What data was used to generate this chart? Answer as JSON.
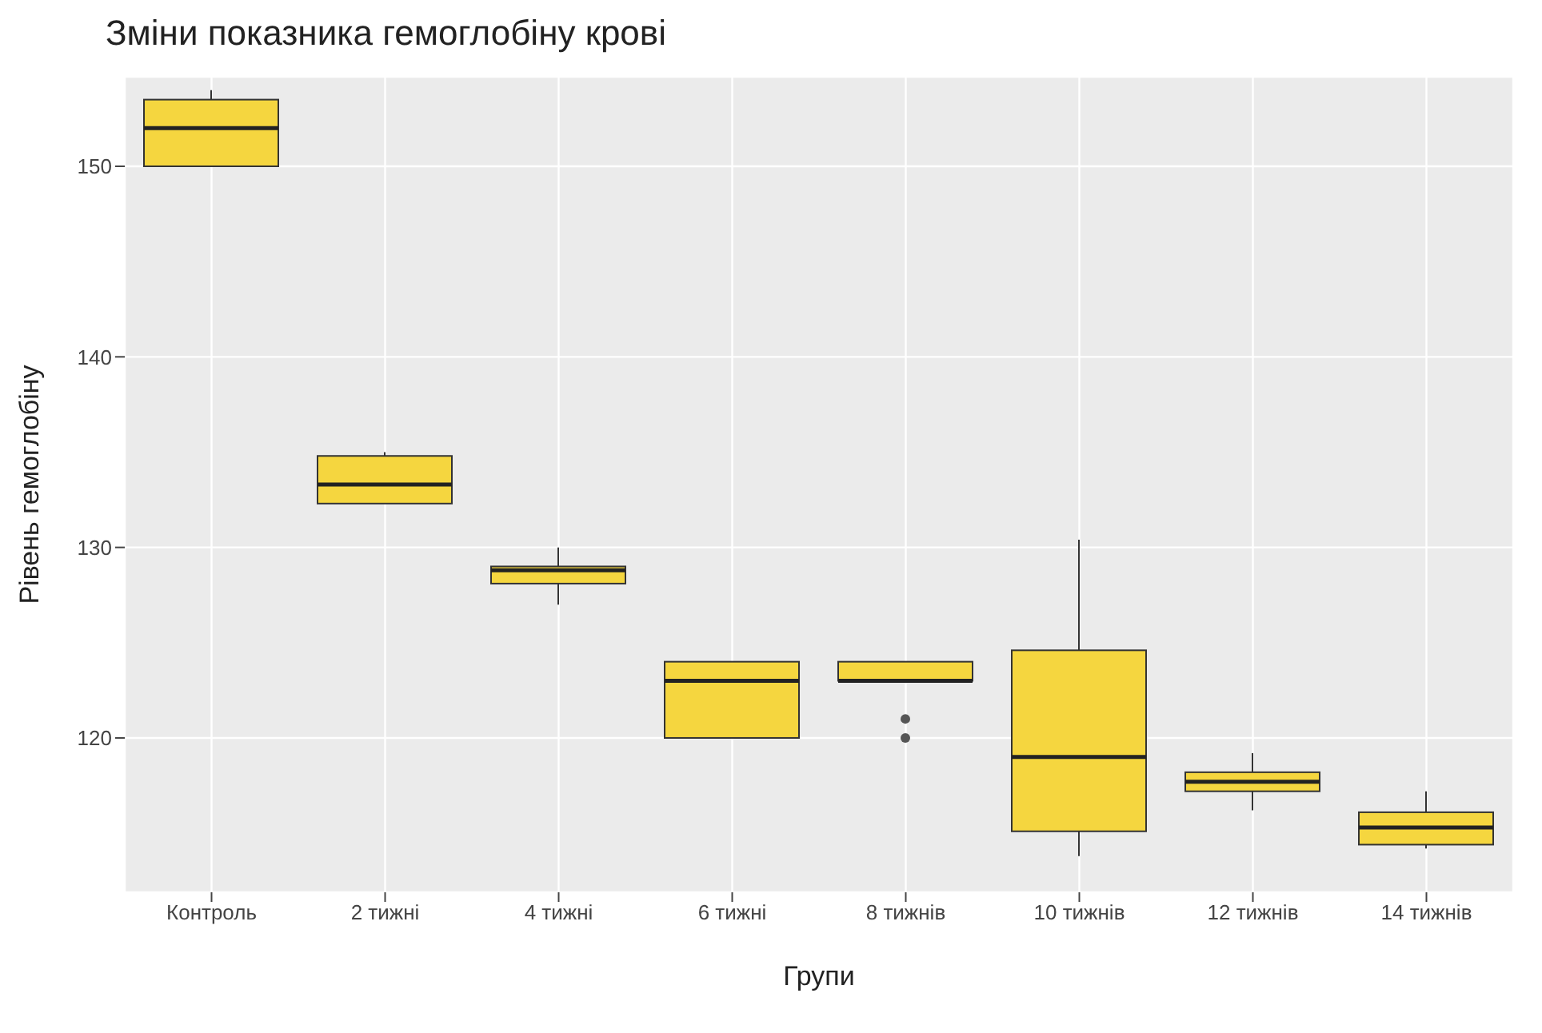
{
  "chart_data": {
    "type": "box",
    "title": "Зміни показника гемоглобіну крові",
    "xlabel": "Групи",
    "ylabel": "Рівень гемоглобіну",
    "categories": [
      "Контроль",
      "2 тижні",
      "4 тижні",
      "6 тижні",
      "8 тижнів",
      "10 тижнів",
      "12 тижнів",
      "14 тижнів"
    ],
    "color": "#f5d63f",
    "boxes": [
      {
        "low": 150,
        "q1": 150,
        "median": 152,
        "q3": 153.5,
        "high": 154
      },
      {
        "low": 132.3,
        "q1": 132.3,
        "median": 133.3,
        "q3": 134.8,
        "high": 135
      },
      {
        "low": 127,
        "q1": 128.1,
        "median": 128.8,
        "q3": 129,
        "high": 130
      },
      {
        "low": 120,
        "q1": 120,
        "median": 123,
        "q3": 124,
        "high": 124
      },
      {
        "low": 123,
        "q1": 123,
        "median": 123,
        "q3": 124,
        "high": 124,
        "outliers": [
          121,
          120
        ]
      },
      {
        "low": 113.8,
        "q1": 115.1,
        "median": 119,
        "q3": 124.6,
        "high": 130.4
      },
      {
        "low": 116.2,
        "q1": 117.2,
        "median": 117.7,
        "q3": 118.2,
        "high": 119.2
      },
      {
        "low": 114.2,
        "q1": 114.4,
        "median": 115.3,
        "q3": 116.1,
        "high": 117.2
      }
    ],
    "ylim": [
      111.9,
      154.7
    ],
    "yticks": [
      120,
      130,
      140,
      150
    ],
    "grid": true
  }
}
